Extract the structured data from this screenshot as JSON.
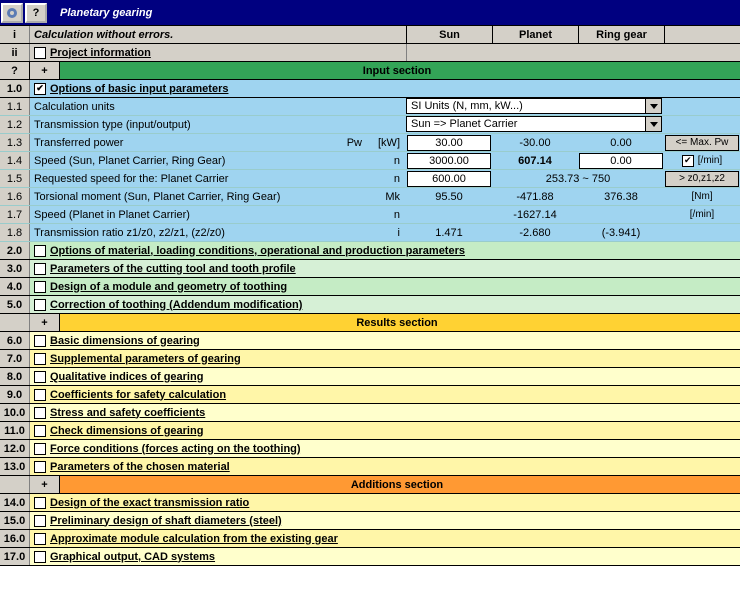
{
  "title": "Planetary gearing",
  "topIcons": {
    "help": "?"
  },
  "header": {
    "idx_i": "i",
    "status": "Calculation without errors.",
    "cols": [
      "Sun",
      "Planet",
      "Ring gear"
    ]
  },
  "projInfo": {
    "idx": "ii",
    "label": "Project information"
  },
  "sections": {
    "input": "Input section",
    "results": "Results section",
    "additions": "Additions section"
  },
  "row10": {
    "idx": "1.0",
    "label": "Options of basic input parameters",
    "checked": true
  },
  "data": [
    {
      "idx": "1.1",
      "label": "Calculation units",
      "select": "SI Units (N, mm, kW...)"
    },
    {
      "idx": "1.2",
      "label": "Transmission type (input/output)",
      "select": "Sun               => Planet Carrier"
    },
    {
      "idx": "1.3",
      "label": "Transferred power",
      "sym": "Pw",
      "unit": "[kW]",
      "c1": "30.00",
      "c1e": true,
      "c2": "-30.00",
      "c3": "0.00",
      "side": {
        "type": "btn",
        "text": "<= Max. Pw"
      }
    },
    {
      "idx": "1.4",
      "label": "Speed (Sun, Planet Carrier, Ring Gear)",
      "sym": "",
      "unit": "n",
      "c1": "3000.00",
      "c1e": true,
      "c2": "607.14",
      "c2b": true,
      "c3": "0.00",
      "c3e": true,
      "side": {
        "type": "chk",
        "text": "[/min]",
        "checked": true
      }
    },
    {
      "idx": "1.5",
      "label": "Requested speed for the: Planet Carrier",
      "sym": "",
      "unit": "n",
      "c1": "600.00",
      "c1e": true,
      "c2": "253.73  ~  750",
      "c2span": 2,
      "side": {
        "type": "btn",
        "text": "> z0,z1,z2"
      }
    },
    {
      "idx": "1.6",
      "label": "Torsional moment (Sun, Planet Carrier, Ring Gear)",
      "sym": "",
      "unit": "Mk",
      "c1": "95.50",
      "c2": "-471.88",
      "c3": "376.38",
      "side": {
        "type": "txt",
        "text": "[Nm]"
      }
    },
    {
      "idx": "1.7",
      "label": "Speed (Planet in Planet Carrier)",
      "sym": "",
      "unit": "n",
      "c1": "",
      "c2": "-1627.14",
      "c3": "",
      "side": {
        "type": "txt",
        "text": "[/min]"
      }
    },
    {
      "idx": "1.8",
      "label": "Transmission ratio z1/z0, z2/z1, (z2/z0)",
      "sym": "",
      "unit": "i",
      "c1": "1.471",
      "c2": "-2.680",
      "c3": "(-3.941)",
      "side": {
        "type": "txt",
        "text": ""
      }
    }
  ],
  "greenOpts": [
    {
      "idx": "2.0",
      "label": "Options of material, loading conditions, operational and production parameters",
      "cls": "g-dark"
    },
    {
      "idx": "3.0",
      "label": "Parameters of the cutting tool and tooth profile",
      "cls": "g-lite"
    },
    {
      "idx": "4.0",
      "label": "Design of a module and geometry of toothing",
      "cls": "g-dark"
    },
    {
      "idx": "5.0",
      "label": "Correction of toothing (Addendum modification)",
      "cls": "g-lite"
    }
  ],
  "yellowOpts": [
    {
      "idx": "6.0",
      "label": "Basic dimensions of gearing",
      "cls": "y-lite"
    },
    {
      "idx": "7.0",
      "label": "Supplemental parameters of gearing",
      "cls": "y-dark"
    },
    {
      "idx": "8.0",
      "label": "Qualitative indices of gearing",
      "cls": "y-lite"
    },
    {
      "idx": "9.0",
      "label": "Coefficients for safety calculation",
      "cls": "y-dark"
    },
    {
      "idx": "10.0",
      "label": "Stress and safety coefficients",
      "cls": "y-lite"
    },
    {
      "idx": "11.0",
      "label": "Check dimensions of gearing",
      "cls": "y-dark"
    },
    {
      "idx": "12.0",
      "label": "Force conditions (forces acting on the toothing)",
      "cls": "y-lite"
    },
    {
      "idx": "13.0",
      "label": "Parameters of the chosen material",
      "cls": "y-dark"
    }
  ],
  "addOpts": [
    {
      "idx": "14.0",
      "label": "Design of the exact transmission ratio",
      "cls": "y-dark"
    },
    {
      "idx": "15.0",
      "label": "Preliminary design of shaft diameters (steel)",
      "cls": "y-lite"
    },
    {
      "idx": "16.0",
      "label": "Approximate module calculation from the existing gear",
      "cls": "y-dark"
    },
    {
      "idx": "17.0",
      "label": "Graphical output, CAD systems",
      "cls": "y-lite"
    }
  ]
}
